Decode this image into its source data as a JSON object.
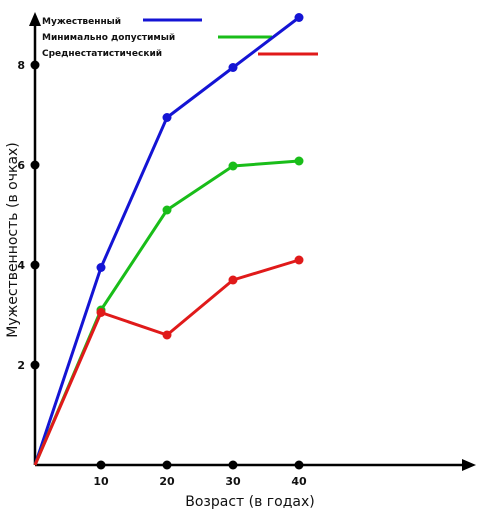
{
  "chart_data": {
    "type": "line",
    "title": "",
    "xlabel": "Возраст (в годах)",
    "ylabel": "Мужественность (в очках)",
    "x": [
      0,
      10,
      20,
      30,
      40
    ],
    "xlim": [
      0,
      44
    ],
    "ylim": [
      0,
      9.4
    ],
    "x_ticks": [
      10,
      20,
      30,
      40
    ],
    "x_tick_labels": [
      "10",
      "20",
      "30",
      "40"
    ],
    "y_ticks": [
      2,
      4,
      6,
      8
    ],
    "y_tick_labels": [
      "2",
      "4",
      "6",
      "8"
    ],
    "grid": false,
    "legend_position": "top-left",
    "series": [
      {
        "name": "Мужественный",
        "color": "#1414d4",
        "values": [
          0,
          3.95,
          6.95,
          7.95,
          8.95
        ]
      },
      {
        "name": "Минимально допустимый",
        "color": "#19bd19",
        "values": [
          0,
          3.1,
          5.1,
          5.98,
          6.08
        ]
      },
      {
        "name": "Среднестатистический",
        "color": "#e01a1a",
        "values": [
          0,
          3.05,
          2.6,
          3.7,
          4.1
        ]
      }
    ]
  }
}
